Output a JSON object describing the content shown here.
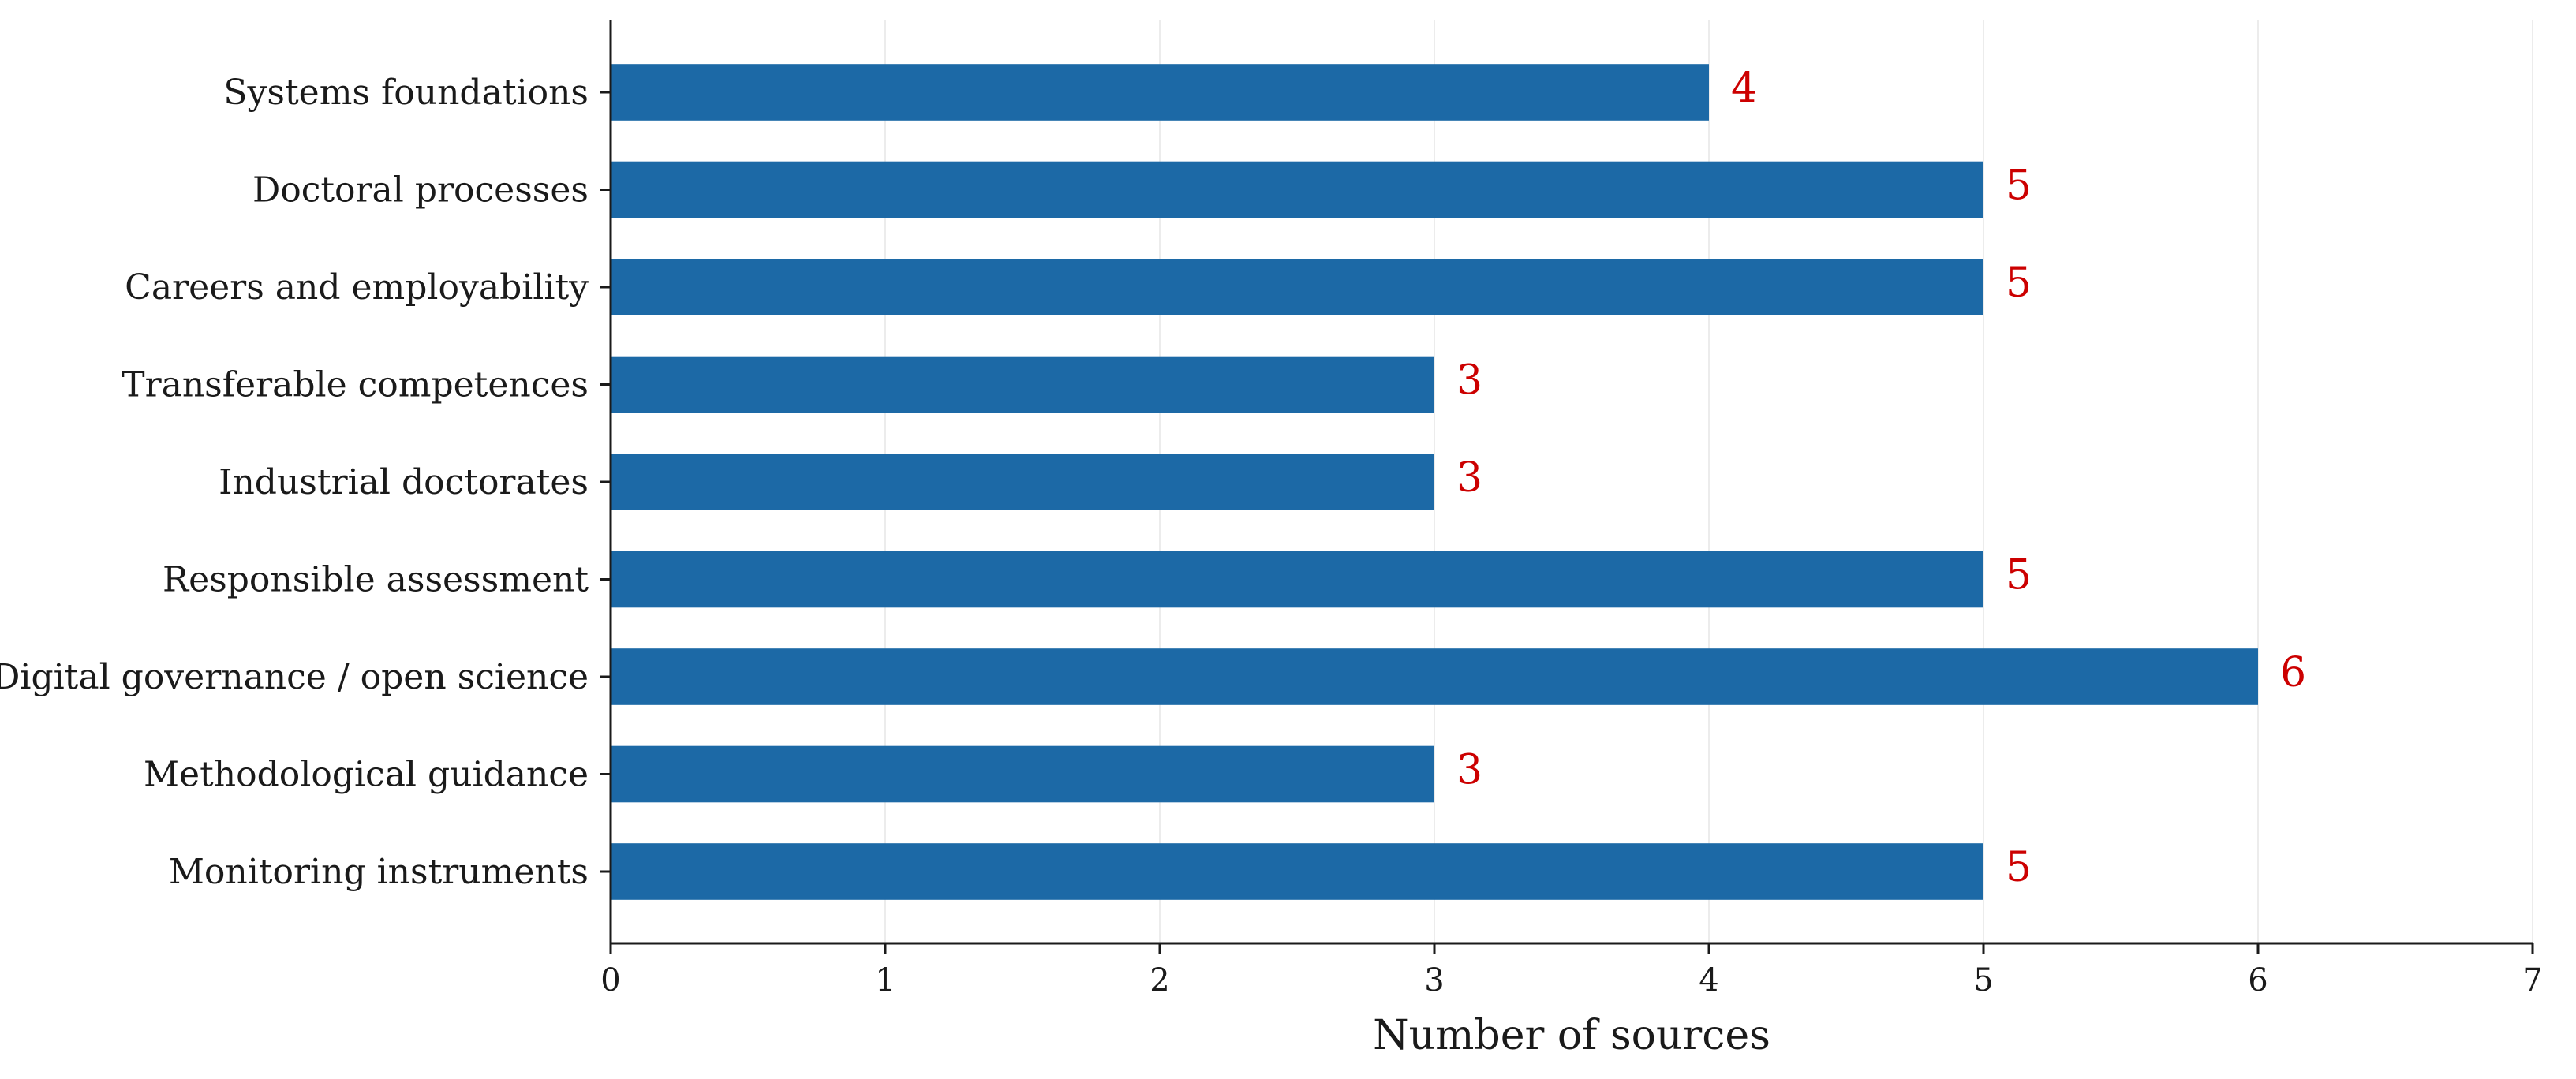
{
  "chart_data": {
    "type": "bar",
    "orientation": "horizontal",
    "categories": [
      "Systems foundations",
      "Doctoral processes",
      "Careers and employability",
      "Transferable competences",
      "Industrial doctorates",
      "Responsible assessment",
      "Digital governance / open science",
      "Methodological guidance",
      "Monitoring instruments"
    ],
    "values": [
      4,
      5,
      5,
      3,
      3,
      5,
      6,
      3,
      5
    ],
    "title": "",
    "xlabel": "Number of sources",
    "ylabel": "",
    "xlim": [
      0,
      7
    ],
    "xticks": [
      "0",
      "1",
      "2",
      "3",
      "4",
      "5",
      "6",
      "7"
    ],
    "grid": "vertical",
    "legend": "none",
    "bar_color": "#1c69a6",
    "value_label_color": "#cc0000"
  }
}
